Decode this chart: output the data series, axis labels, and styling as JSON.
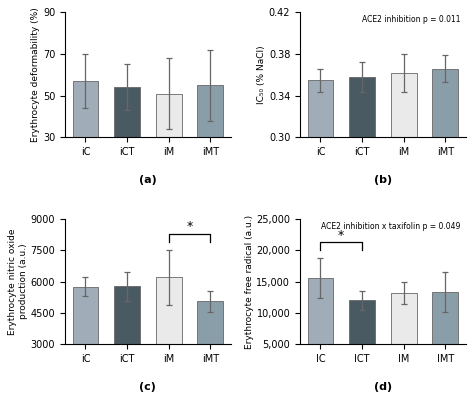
{
  "categories_abcd": [
    "iC",
    "iCT",
    "iM",
    "iMT"
  ],
  "categories_d": [
    "IC",
    "ICT",
    "IM",
    "IMT"
  ],
  "bar_colors": [
    "#a0adb8",
    "#4a5a62",
    "#eaeaea",
    "#8a9eaa"
  ],
  "bar_edge_color": "#666666",
  "panel_a": {
    "values": [
      57,
      54,
      51,
      55
    ],
    "errors": [
      13,
      11,
      17,
      17
    ],
    "ylabel": "Erythrocyte deformability (%)",
    "ylim": [
      30,
      90
    ],
    "yticks": [
      30,
      50,
      70,
      90
    ],
    "label": "(a)",
    "use_comma": false
  },
  "panel_b": {
    "values": [
      0.355,
      0.358,
      0.362,
      0.366
    ],
    "errors": [
      0.011,
      0.014,
      0.018,
      0.013
    ],
    "ylabel": "IC₅₀ (% NaCl)",
    "ylim": [
      0.3,
      0.42
    ],
    "yticks": [
      0.3,
      0.34,
      0.38,
      0.42
    ],
    "label": "(b)",
    "annotation": "ACE2 inhibition p = 0.011",
    "use_comma": false
  },
  "panel_c": {
    "values": [
      5750,
      5780,
      6200,
      5050
    ],
    "errors": [
      450,
      700,
      1300,
      500
    ],
    "ylabel": "Erythrocyte nitric oxide\nproduction (a.u.)",
    "ylim": [
      3000,
      9000
    ],
    "yticks": [
      3000,
      4500,
      6000,
      7500,
      9000
    ],
    "label": "(c)",
    "sig_bracket": [
      2,
      3
    ],
    "use_comma": false
  },
  "panel_d": {
    "values": [
      15500,
      12000,
      13200,
      13300
    ],
    "errors": [
      3200,
      1500,
      1800,
      3200
    ],
    "ylabel": "Erythrocyte free radical (a.u.)",
    "ylim": [
      5000,
      25000
    ],
    "yticks": [
      5000,
      10000,
      15000,
      20000,
      25000
    ],
    "label": "(d)",
    "annotation": "ACE2 inhibition x taxifolin p = 0.049",
    "sig_bracket": [
      0,
      1
    ],
    "use_comma": true
  }
}
